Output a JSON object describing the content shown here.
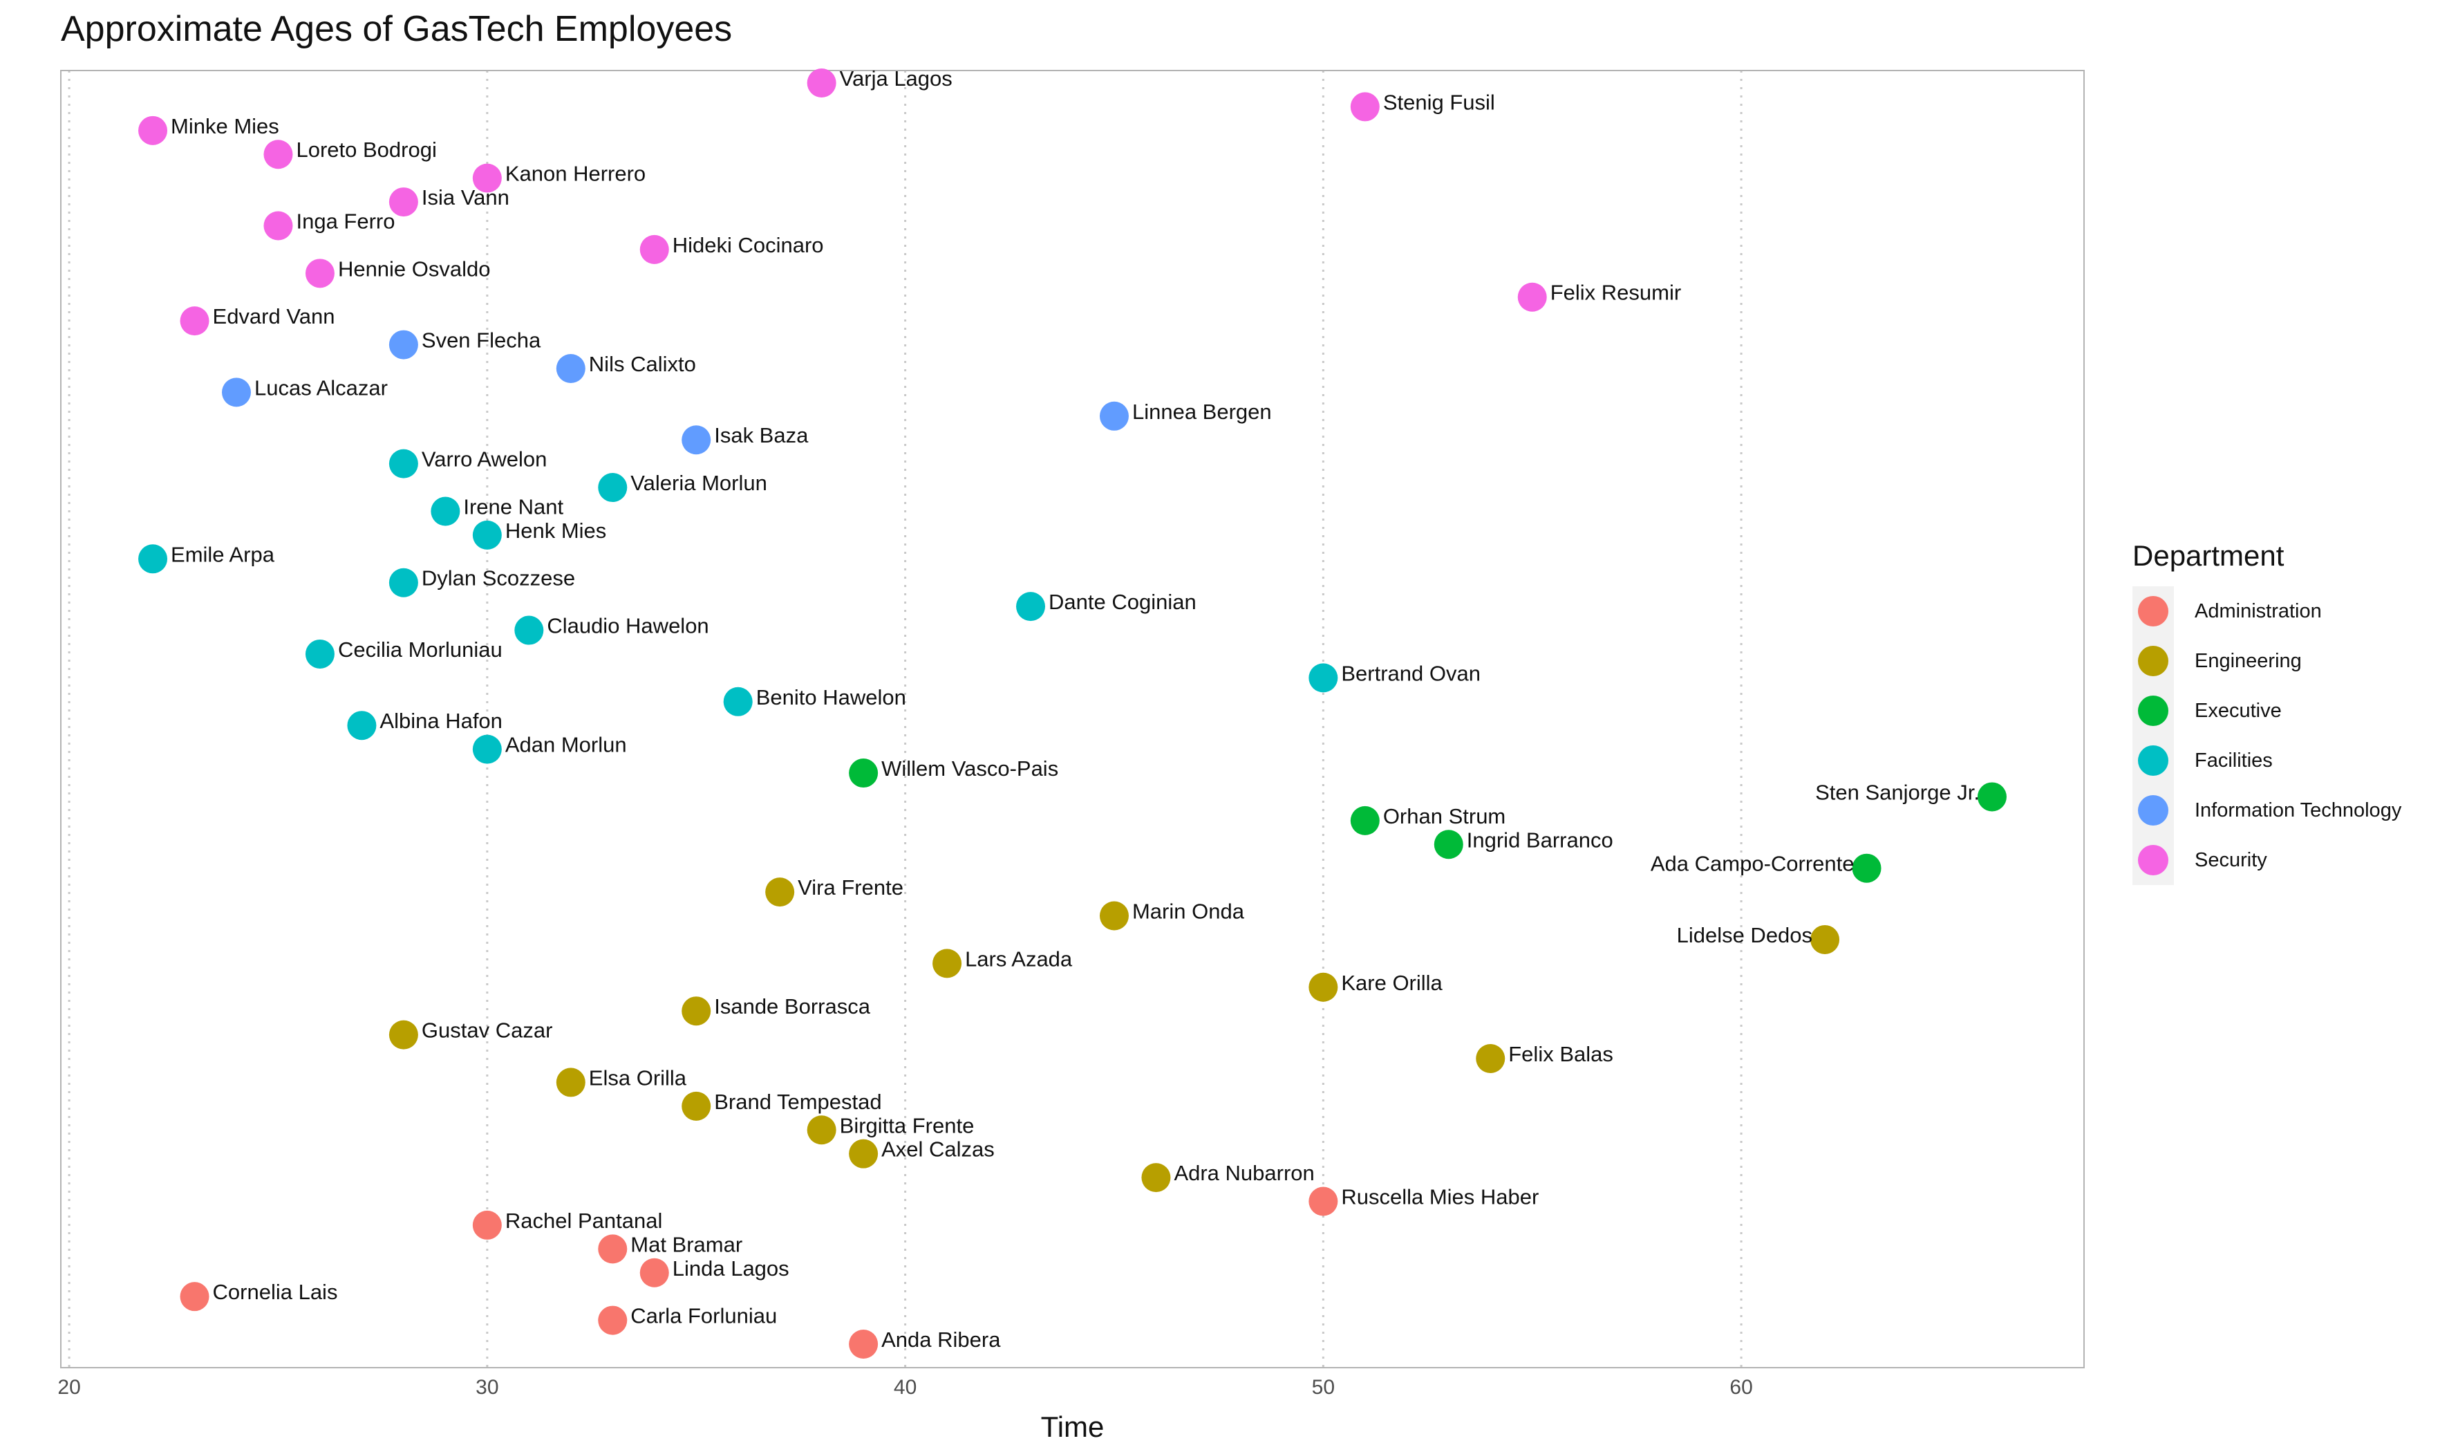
{
  "title": "Approximate Ages of GasTech Employees",
  "chart_data": {
    "type": "scatter",
    "title": "Approximate Ages of GasTech Employees",
    "xlabel": "Time",
    "ylabel": "",
    "xlim": [
      19.8,
      68.2
    ],
    "x_ticks": [
      20,
      30,
      40,
      50,
      60
    ],
    "y_axis": "employees ordered vertically, no tick labels",
    "grid": "vertical dotted major gridlines only",
    "legend": {
      "title": "Department",
      "placement": "right",
      "entries": [
        {
          "name": "Administration",
          "color": "#F8766D"
        },
        {
          "name": "Engineering",
          "color": "#B79F00"
        },
        {
          "name": "Executive",
          "color": "#00BA38"
        },
        {
          "name": "Facilities",
          "color": "#00BFC4"
        },
        {
          "name": "Information Technology",
          "color": "#619CFF"
        },
        {
          "name": "Security",
          "color": "#F564E3"
        }
      ]
    },
    "points": [
      {
        "name": "Anda Ribera",
        "x": 39,
        "dept": "Administration"
      },
      {
        "name": "Carla Forluniau",
        "x": 33,
        "dept": "Administration"
      },
      {
        "name": "Cornelia Lais",
        "x": 23,
        "dept": "Administration"
      },
      {
        "name": "Linda Lagos",
        "x": 34,
        "dept": "Administration"
      },
      {
        "name": "Mat Bramar",
        "x": 33,
        "dept": "Administration"
      },
      {
        "name": "Rachel Pantanal",
        "x": 30,
        "dept": "Administration"
      },
      {
        "name": "Ruscella Mies Haber",
        "x": 50,
        "dept": "Administration"
      },
      {
        "name": "Adra Nubarron",
        "x": 46,
        "dept": "Engineering"
      },
      {
        "name": "Axel Calzas",
        "x": 39,
        "dept": "Engineering"
      },
      {
        "name": "Birgitta Frente",
        "x": 38,
        "dept": "Engineering"
      },
      {
        "name": "Brand Tempestad",
        "x": 35,
        "dept": "Engineering"
      },
      {
        "name": "Elsa Orilla",
        "x": 32,
        "dept": "Engineering"
      },
      {
        "name": "Felix Balas",
        "x": 54,
        "dept": "Engineering"
      },
      {
        "name": "Gustav Cazar",
        "x": 28,
        "dept": "Engineering"
      },
      {
        "name": "Isande Borrasca",
        "x": 35,
        "dept": "Engineering"
      },
      {
        "name": "Kare Orilla",
        "x": 50,
        "dept": "Engineering"
      },
      {
        "name": "Lars Azada",
        "x": 41,
        "dept": "Engineering"
      },
      {
        "name": "Lidelse Dedos",
        "x": 62,
        "dept": "Engineering"
      },
      {
        "name": "Marin Onda",
        "x": 45,
        "dept": "Engineering"
      },
      {
        "name": "Vira Frente",
        "x": 37,
        "dept": "Engineering"
      },
      {
        "name": "Ada Campo-Corrente",
        "x": 63,
        "dept": "Executive"
      },
      {
        "name": "Ingrid Barranco",
        "x": 53,
        "dept": "Executive"
      },
      {
        "name": "Orhan Strum",
        "x": 51,
        "dept": "Executive"
      },
      {
        "name": "Sten Sanjorge Jr.",
        "x": 66,
        "dept": "Executive"
      },
      {
        "name": "Willem Vasco-Pais",
        "x": 39,
        "dept": "Executive"
      },
      {
        "name": "Adan Morlun",
        "x": 30,
        "dept": "Facilities"
      },
      {
        "name": "Albina Hafon",
        "x": 27,
        "dept": "Facilities"
      },
      {
        "name": "Benito Hawelon",
        "x": 36,
        "dept": "Facilities"
      },
      {
        "name": "Bertrand Ovan",
        "x": 50,
        "dept": "Facilities"
      },
      {
        "name": "Cecilia Morluniau",
        "x": 26,
        "dept": "Facilities"
      },
      {
        "name": "Claudio Hawelon",
        "x": 31,
        "dept": "Facilities"
      },
      {
        "name": "Dante Coginian",
        "x": 43,
        "dept": "Facilities"
      },
      {
        "name": "Dylan Scozzese",
        "x": 28,
        "dept": "Facilities"
      },
      {
        "name": "Emile Arpa",
        "x": 22,
        "dept": "Facilities"
      },
      {
        "name": "Henk Mies",
        "x": 30,
        "dept": "Facilities"
      },
      {
        "name": "Irene Nant",
        "x": 29,
        "dept": "Facilities"
      },
      {
        "name": "Valeria Morlun",
        "x": 33,
        "dept": "Facilities"
      },
      {
        "name": "Varro Awelon",
        "x": 28,
        "dept": "Facilities"
      },
      {
        "name": "Isak Baza",
        "x": 35,
        "dept": "Information Technology"
      },
      {
        "name": "Linnea Bergen",
        "x": 45,
        "dept": "Information Technology"
      },
      {
        "name": "Lucas Alcazar",
        "x": 24,
        "dept": "Information Technology"
      },
      {
        "name": "Nils Calixto",
        "x": 32,
        "dept": "Information Technology"
      },
      {
        "name": "Sven Flecha",
        "x": 28,
        "dept": "Information Technology"
      },
      {
        "name": "Edvard Vann",
        "x": 23,
        "dept": "Security"
      },
      {
        "name": "Felix Resumir",
        "x": 55,
        "dept": "Security"
      },
      {
        "name": "Hennie Osvaldo",
        "x": 26,
        "dept": "Security"
      },
      {
        "name": "Hideki Cocinaro",
        "x": 34,
        "dept": "Security"
      },
      {
        "name": "Inga Ferro",
        "x": 25,
        "dept": "Security"
      },
      {
        "name": "Isia Vann",
        "x": 28,
        "dept": "Security"
      },
      {
        "name": "Kanon Herrero",
        "x": 30,
        "dept": "Security"
      },
      {
        "name": "Loreto Bodrogi",
        "x": 25,
        "dept": "Security"
      },
      {
        "name": "Minke Mies",
        "x": 22,
        "dept": "Security"
      },
      {
        "name": "Stenig Fusil",
        "x": 51,
        "dept": "Security"
      },
      {
        "name": "Varja Lagos",
        "x": 38,
        "dept": "Security"
      }
    ]
  }
}
